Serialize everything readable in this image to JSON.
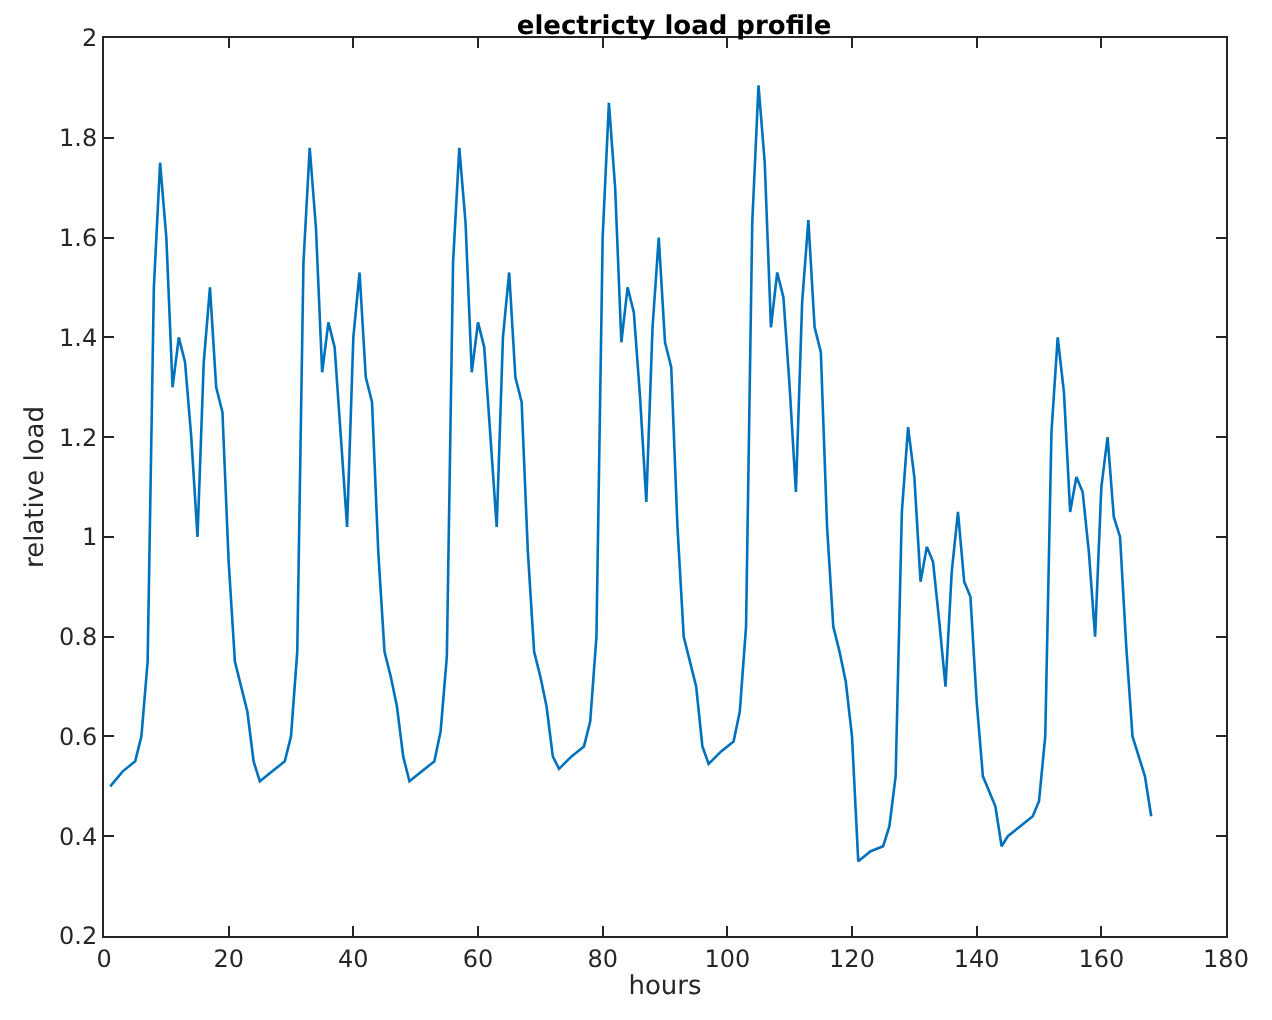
{
  "chart_data": {
    "type": "line",
    "title": "electricty load profile",
    "xlabel": "hours",
    "ylabel": "relative load",
    "x": [
      1,
      3,
      5,
      6,
      7,
      8,
      9,
      10,
      11,
      12,
      13,
      14,
      15,
      16,
      17,
      18,
      19,
      20,
      21,
      22,
      23,
      24,
      25,
      27,
      29,
      30,
      31,
      32,
      33,
      34,
      35,
      36,
      37,
      38,
      39,
      40,
      41,
      42,
      43,
      44,
      45,
      46,
      47,
      48,
      49,
      51,
      53,
      54,
      55,
      56,
      57,
      58,
      59,
      60,
      61,
      62,
      63,
      64,
      65,
      66,
      67,
      68,
      69,
      70,
      71,
      72,
      73,
      75,
      77,
      78,
      79,
      80,
      81,
      82,
      83,
      84,
      85,
      86,
      87,
      88,
      89,
      90,
      91,
      92,
      93,
      94,
      95,
      96,
      97,
      99,
      101,
      102,
      103,
      104,
      105,
      106,
      107,
      108,
      109,
      110,
      111,
      112,
      113,
      114,
      115,
      116,
      117,
      118,
      119,
      120,
      121,
      123,
      125,
      126,
      127,
      128,
      129,
      130,
      131,
      132,
      133,
      134,
      135,
      136,
      137,
      138,
      139,
      140,
      141,
      142,
      143,
      144,
      145,
      147,
      148,
      149,
      150,
      151,
      152,
      153,
      154,
      155,
      156,
      157,
      158,
      159,
      160,
      161,
      162,
      163,
      164,
      165,
      166,
      167,
      168
    ],
    "series": [
      {
        "color": "#0072bd",
        "values": [
          0.5,
          0.53,
          0.55,
          0.6,
          0.75,
          1.5,
          1.75,
          1.6,
          1.3,
          1.4,
          1.35,
          1.2,
          1.0,
          1.35,
          1.5,
          1.3,
          1.25,
          0.95,
          0.75,
          0.7,
          0.65,
          0.55,
          0.51,
          0.53,
          0.55,
          0.6,
          0.77,
          1.55,
          1.78,
          1.62,
          1.33,
          1.43,
          1.38,
          1.2,
          1.02,
          1.4,
          1.53,
          1.32,
          1.27,
          0.97,
          0.77,
          0.72,
          0.66,
          0.56,
          0.51,
          0.53,
          0.55,
          0.61,
          0.76,
          1.55,
          1.78,
          1.63,
          1.33,
          1.43,
          1.38,
          1.2,
          1.02,
          1.4,
          1.53,
          1.32,
          1.27,
          0.97,
          0.77,
          0.72,
          0.66,
          0.56,
          0.535,
          0.56,
          0.58,
          0.63,
          0.8,
          1.6,
          1.87,
          1.7,
          1.39,
          1.5,
          1.45,
          1.28,
          1.07,
          1.42,
          1.6,
          1.39,
          1.34,
          1.02,
          0.8,
          0.75,
          0.7,
          0.58,
          0.545,
          0.57,
          0.59,
          0.65,
          0.82,
          1.63,
          1.905,
          1.75,
          1.42,
          1.53,
          1.48,
          1.3,
          1.09,
          1.47,
          1.635,
          1.42,
          1.37,
          1.02,
          0.82,
          0.77,
          0.71,
          0.6,
          0.35,
          0.37,
          0.38,
          0.42,
          0.52,
          1.05,
          1.22,
          1.12,
          0.91,
          0.98,
          0.95,
          0.83,
          0.7,
          0.93,
          1.05,
          0.91,
          0.88,
          0.67,
          0.52,
          0.49,
          0.46,
          0.38,
          0.4,
          0.42,
          0.43,
          0.44,
          0.47,
          0.6,
          1.21,
          1.4,
          1.29,
          1.05,
          1.12,
          1.09,
          0.97,
          0.8,
          1.1,
          1.2,
          1.04,
          1.0,
          0.78,
          0.6,
          0.56,
          0.52,
          0.44
        ]
      }
    ],
    "xlim": [
      0,
      180
    ],
    "xticks": [
      0,
      20,
      40,
      60,
      80,
      100,
      120,
      140,
      160,
      180
    ],
    "ylim": [
      0.2,
      2
    ],
    "yticks": [
      0.2,
      0.4,
      0.6,
      0.8,
      {
        "value": 1,
        "label": "1"
      },
      1.2,
      1.4,
      1.6,
      1.8,
      {
        "value": 2,
        "label": "2"
      }
    ],
    "marker": "none",
    "line_style": "solid"
  }
}
